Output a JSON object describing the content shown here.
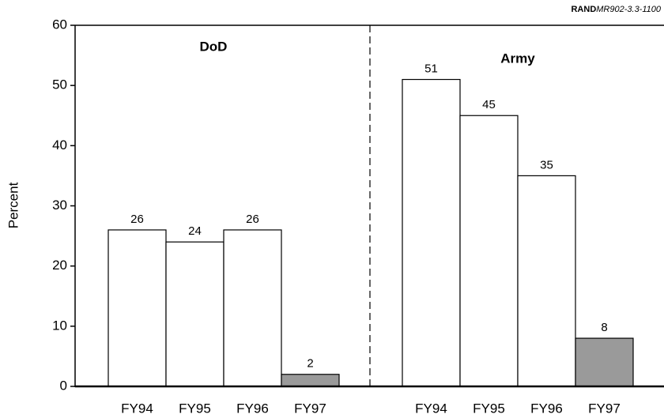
{
  "note": {
    "prefix": "RAND",
    "code": "MR902-3.3-1100"
  },
  "chart_data": [
    {
      "type": "bar",
      "title": "DoD",
      "ylabel": "Percent",
      "categories": [
        "FY94",
        "FY95",
        "FY96",
        "FY97"
      ],
      "values": [
        26,
        24,
        26,
        2
      ],
      "colors": [
        "#ffffff",
        "#ffffff",
        "#ffffff",
        "#9a9a9a"
      ],
      "ylim": [
        0,
        60
      ],
      "yticks": [
        0,
        10,
        20,
        30,
        40,
        50,
        60
      ]
    },
    {
      "type": "bar",
      "title": "Army",
      "categories": [
        "FY94",
        "FY95",
        "FY96",
        "FY97"
      ],
      "values": [
        51,
        45,
        35,
        8
      ],
      "colors": [
        "#ffffff",
        "#ffffff",
        "#ffffff",
        "#9a9a9a"
      ],
      "ylim": [
        0,
        60
      ]
    }
  ]
}
